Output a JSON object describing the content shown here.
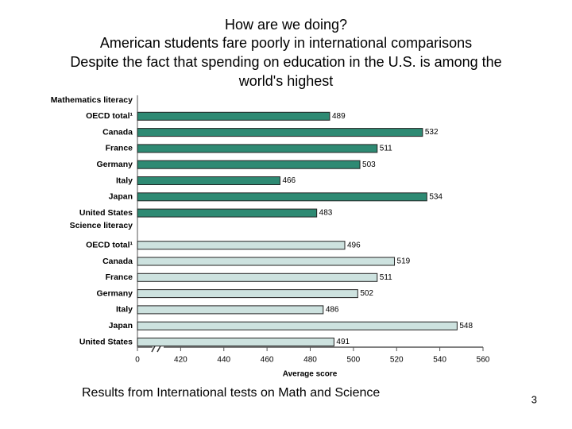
{
  "slide": {
    "title": [
      "How are we doing?",
      "American students fare poorly in international comparisons",
      "Despite the fact that spending on education in the U.S. is among the",
      "world's highest"
    ],
    "caption": "Results from International tests on Math and Science",
    "page_number": "3"
  },
  "chart_data": {
    "type": "bar",
    "orientation": "horizontal",
    "xlabel": "Average score",
    "groups": [
      {
        "name": "Mathematics literacy",
        "color": "#2e8a73",
        "categories": [
          "OECD total¹",
          "Canada",
          "France",
          "Germany",
          "Italy",
          "Japan",
          "United States"
        ],
        "values": [
          489,
          532,
          511,
          503,
          466,
          534,
          483
        ]
      },
      {
        "name": "Science literacy",
        "color": "#cde2df",
        "categories": [
          "OECD total¹",
          "Canada",
          "France",
          "Germany",
          "Italy",
          "Japan",
          "United States"
        ],
        "values": [
          496,
          519,
          511,
          502,
          486,
          548,
          491
        ]
      }
    ],
    "xlim": [
      400,
      560
    ],
    "axis_break": true,
    "xticks": [
      {
        "value": 400,
        "label": "0"
      },
      420,
      440,
      460,
      480,
      500,
      520,
      540,
      560
    ]
  }
}
